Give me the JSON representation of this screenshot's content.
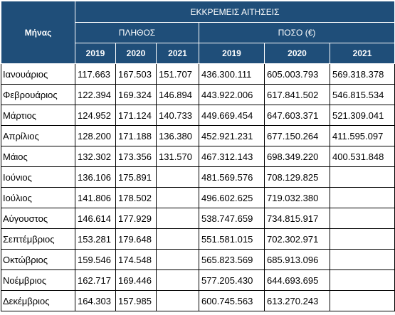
{
  "table": {
    "header_month": "Μήνας",
    "header_main": "ΕΚΚΡΕΜΕΙΣ ΑΙΤΗΣΕΙΣ",
    "header_count": "ΠΛΗΘΟΣ",
    "header_amount": "ΠΟΣΟ (€)",
    "years_count": [
      "2019",
      "2020",
      "2021"
    ],
    "years_amount": [
      "2019",
      "2020",
      "2021"
    ],
    "rows": [
      {
        "month": "Ιανουάριος",
        "c2019": "117.663",
        "c2020": "167.503",
        "c2021": "151.707",
        "a2019": "436.300.111",
        "a2020": "605.003.793",
        "a2021": "569.318.378"
      },
      {
        "month": "Φεβρουάριος",
        "c2019": "122.394",
        "c2020": "169.324",
        "c2021": "146.894",
        "a2019": "443.922.006",
        "a2020": "617.841.502",
        "a2021": "546.815.534"
      },
      {
        "month": "Μάρτιος",
        "c2019": "124.952",
        "c2020": "171.124",
        "c2021": "140.733",
        "a2019": "449.669.454",
        "a2020": "647.603.371",
        "a2021": "521.309.041"
      },
      {
        "month": "Απρίλιος",
        "c2019": "128.200",
        "c2020": "171.188",
        "c2021": "136.380",
        "a2019": "452.921.231",
        "a2020": "677.150.264",
        "a2021": "411.595.097"
      },
      {
        "month": "Μάιος",
        "c2019": "132.302",
        "c2020": "173.356",
        "c2021": "131.570",
        "a2019": "467.312.143",
        "a2020": "698.349.220",
        "a2021": "400.531.848"
      },
      {
        "month": "Ιούνιος",
        "c2019": "136.106",
        "c2020": "175.891",
        "c2021": "",
        "a2019": "481.569.576",
        "a2020": "708.129.825",
        "a2021": ""
      },
      {
        "month": "Ιούλιος",
        "c2019": "141.806",
        "c2020": "178.502",
        "c2021": "",
        "a2019": "496.602.625",
        "a2020": "719.032.380",
        "a2021": ""
      },
      {
        "month": "Αύγουστος",
        "c2019": "146.614",
        "c2020": "177.929",
        "c2021": "",
        "a2019": "538.747.659",
        "a2020": "734.815.917",
        "a2021": ""
      },
      {
        "month": "Σεπτέμβριος",
        "c2019": "153.281",
        "c2020": "179.648",
        "c2021": "",
        "a2019": "551.581.015",
        "a2020": "702.302.971",
        "a2021": ""
      },
      {
        "month": "Οκτώβριος",
        "c2019": "159.546",
        "c2020": "174.548",
        "c2021": "",
        "a2019": "565.823.569",
        "a2020": "685.913.096",
        "a2021": ""
      },
      {
        "month": "Νοέμβριος",
        "c2019": "162.717",
        "c2020": "169.446",
        "c2021": "",
        "a2019": "577.205.430",
        "a2020": "644.693.695",
        "a2021": ""
      },
      {
        "month": "Δεκέμβριος",
        "c2019": "164.303",
        "c2020": "157.985",
        "c2021": "",
        "a2019": "600.745.563",
        "a2020": "613.270.243",
        "a2021": ""
      }
    ]
  },
  "colors": {
    "header_bg": "#1F4E79",
    "header_text": "#FFFFFF",
    "grid": "#000000"
  }
}
